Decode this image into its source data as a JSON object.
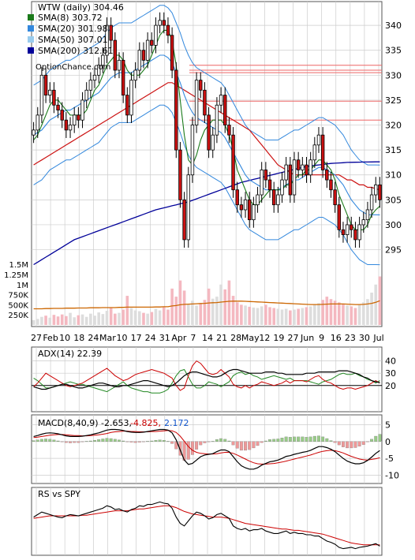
{
  "chart_data": {
    "type": "line",
    "symbol_header": "WTW (daily) 304.46",
    "source_label": "OptionChance.com",
    "colors": {
      "sma8": "#1a7a1a",
      "sma20": "#3388dd",
      "sma50": "#99ccee",
      "sma200": "#000099",
      "bollinger": "#3388dd",
      "envelope_yellow": "#eeee33",
      "candle_up": "#ffffff",
      "candle_down": "#cc1111",
      "resistance": "#ee6666",
      "adx": "#000000",
      "plus_di": "#cc0000",
      "minus_di": "#228822",
      "macd": "#000000",
      "macd_signal": "#cc0000",
      "macd_hist_up": "#99cc88",
      "macd_hist_down": "#ee9999",
      "volume_avg": "#cc6600",
      "rs": "#000000"
    },
    "legend": [
      {
        "label": "SMA(8) 303.72",
        "color": "#1a7a1a"
      },
      {
        "label": "SMA(20) 301.98",
        "color": "#3388dd"
      },
      {
        "label": "SMA(50) 307.01",
        "color": "#99ccee"
      },
      {
        "label": "SMA(200) 312.61",
        "color": "#000099"
      }
    ],
    "x_axis_labels": [
      "27",
      "Feb",
      "10",
      "18",
      "24",
      "Mar",
      "10",
      "17",
      "24",
      "31",
      "Apr",
      "7",
      "14",
      "21",
      "28",
      "May",
      "12",
      "19",
      "27",
      "Jun",
      "9",
      "16",
      "23",
      "30",
      "Jul"
    ],
    "price_ticks": [
      295,
      300,
      305,
      310,
      315,
      320,
      325,
      330,
      335,
      340
    ],
    "price_ylim": [
      290.5,
      343.5
    ],
    "volume_ticks": [
      "1.5M",
      "1.25M",
      "1M",
      "750K",
      "500K",
      "250K"
    ],
    "volume_tick_values": [
      1500000,
      1250000,
      1000000,
      750000,
      500000,
      250000
    ],
    "resistance_levels": [
      332,
      331,
      330.5,
      324.8,
      321
    ],
    "price_series": {
      "close": [
        319,
        322,
        330,
        326,
        327,
        324,
        323,
        321,
        319,
        320,
        322,
        321,
        325,
        327,
        329,
        330,
        332,
        334,
        340,
        337,
        331,
        333,
        326,
        322,
        329,
        331,
        335,
        333,
        337,
        336,
        340,
        341,
        340,
        338,
        331,
        315,
        305,
        297,
        310,
        320,
        329,
        327,
        322,
        315,
        318,
        324,
        326,
        320,
        318,
        307,
        304,
        303,
        305,
        301,
        304,
        306,
        311,
        309,
        307,
        304,
        306,
        309,
        312,
        306,
        313,
        311,
        312,
        310,
        313,
        316,
        318,
        311,
        309,
        307,
        304,
        299,
        298,
        300,
        299,
        297,
        300,
        301,
        303,
        306,
        308,
        305
      ],
      "sma8": [
        317,
        318,
        320,
        322,
        324,
        325,
        325,
        324,
        323,
        322,
        322,
        322,
        322,
        323,
        325,
        327,
        328,
        330,
        332,
        333,
        334,
        334,
        333,
        331,
        330,
        330,
        330,
        331,
        332,
        334,
        336,
        338,
        339,
        339,
        337,
        332,
        325,
        318,
        313,
        312,
        314,
        317,
        319,
        320,
        321,
        321,
        321,
        320,
        318,
        315,
        311,
        309,
        307,
        305,
        304,
        304,
        305,
        306,
        307,
        307,
        307,
        307,
        308,
        308,
        309,
        310,
        310,
        311,
        311,
        312,
        313,
        313,
        312,
        311,
        309,
        306,
        304,
        302,
        300,
        299,
        299,
        299,
        300,
        302,
        303,
        303.72
      ],
      "sma20": [
        318,
        318.5,
        319,
        320,
        321,
        321.5,
        322,
        322.5,
        323,
        323,
        323.5,
        324,
        324.5,
        325,
        325.5,
        326,
        326.5,
        327.5,
        328.5,
        329.5,
        330,
        330.5,
        330.5,
        330.5,
        330.5,
        331,
        331.5,
        332,
        332.5,
        333,
        333.5,
        334,
        334,
        333.5,
        332.5,
        330.5,
        328.5,
        326,
        324,
        322.5,
        321.5,
        321,
        320.5,
        320,
        319.5,
        319,
        318.5,
        317.5,
        316,
        314.5,
        313,
        311.5,
        310,
        309,
        308.5,
        308,
        307.5,
        307,
        307,
        307,
        307,
        307.5,
        308,
        308.5,
        309,
        309,
        309.5,
        310,
        310.5,
        311,
        311.5,
        311.5,
        311,
        310.5,
        310,
        309,
        308,
        306.5,
        305,
        304,
        303,
        302.5,
        302,
        302,
        302,
        301.98
      ],
      "sma50": [
        312,
        312.5,
        313,
        313.5,
        314,
        314.5,
        315,
        315.5,
        316,
        316.5,
        317,
        317.5,
        318,
        318.5,
        319,
        319.5,
        320,
        320.5,
        321,
        321.5,
        322,
        322.5,
        323,
        323.5,
        324,
        324.5,
        325,
        325.5,
        326,
        326.5,
        327,
        327.5,
        328,
        328.5,
        328.5,
        328,
        327.5,
        327,
        326.5,
        326,
        325.5,
        325,
        324.5,
        324,
        323.5,
        323,
        322.5,
        322,
        321.5,
        321,
        320.5,
        320,
        319.5,
        319,
        318,
        317,
        316,
        315,
        314,
        313,
        312,
        311.5,
        311,
        310.5,
        310,
        310,
        310,
        310,
        310,
        310,
        310,
        310,
        310,
        310,
        310,
        310,
        309.5,
        309,
        309,
        308.5,
        308,
        308,
        307.5,
        307.5,
        307.2,
        307.01
      ],
      "sma200": [
        292,
        292.5,
        293,
        293.5,
        294,
        294.5,
        295,
        295.5,
        296,
        296.5,
        297,
        297.3,
        297.6,
        297.9,
        298.2,
        298.5,
        298.8,
        299.1,
        299.4,
        299.7,
        300,
        300.3,
        300.6,
        300.9,
        301.2,
        301.5,
        301.8,
        302.1,
        302.4,
        302.7,
        303,
        303.2,
        303.4,
        303.6,
        303.8,
        304,
        304.2,
        304.4,
        304.6,
        304.9,
        305.2,
        305.5,
        305.8,
        306.1,
        306.4,
        306.7,
        307,
        307.3,
        307.6,
        307.9,
        308.2,
        308.5,
        308.7,
        308.9,
        309.1,
        309.3,
        309.5,
        309.7,
        309.9,
        310.1,
        310.3,
        310.5,
        310.7,
        310.9,
        311.1,
        311.3,
        311.5,
        311.7,
        311.8,
        311.9,
        312,
        312.1,
        312.2,
        312.3,
        312.35,
        312.4,
        312.45,
        312.5,
        312.52,
        312.54,
        312.56,
        312.58,
        312.59,
        312.6,
        312.61,
        312.61
      ]
    },
    "volume": [
      120000,
      150000,
      200000,
      230000,
      180000,
      250000,
      210000,
      260000,
      220000,
      300000,
      190000,
      240000,
      260000,
      200000,
      280000,
      230000,
      310000,
      270000,
      350000,
      420000,
      280000,
      300000,
      380000,
      720000,
      420000,
      360000,
      340000,
      300000,
      280000,
      320000,
      400000,
      360000,
      450000,
      380000,
      900000,
      700000,
      1100000,
      850000,
      520000,
      600000,
      480000,
      540000,
      620000,
      900000,
      650000,
      700000,
      1000000,
      880000,
      1100000,
      720000,
      560000,
      500000,
      480000,
      450000,
      430000,
      420000,
      460000,
      500000,
      440000,
      420000,
      400000,
      380000,
      400000,
      360000,
      380000,
      400000,
      420000,
      440000,
      460000,
      500000,
      540000,
      620000,
      700000,
      640000,
      600000,
      560000,
      520000,
      480000,
      460000,
      420000,
      500000,
      560000,
      640000,
      800000,
      1000000,
      1200000
    ],
    "volume_avg": [
      400000,
      400000,
      400000,
      405000,
      405000,
      410000,
      410000,
      410000,
      415000,
      415000,
      415000,
      420000,
      420000,
      420000,
      425000,
      425000,
      425000,
      430000,
      430000,
      430000,
      430000,
      435000,
      435000,
      440000,
      440000,
      440000,
      440000,
      440000,
      440000,
      440000,
      445000,
      445000,
      450000,
      450000,
      470000,
      480000,
      500000,
      510000,
      515000,
      520000,
      525000,
      530000,
      535000,
      545000,
      550000,
      555000,
      565000,
      575000,
      585000,
      590000,
      590000,
      590000,
      585000,
      580000,
      575000,
      570000,
      565000,
      560000,
      555000,
      550000,
      545000,
      540000,
      535000,
      530000,
      525000,
      520000,
      515000,
      510000,
      505000,
      505000,
      505000,
      510000,
      515000,
      520000,
      520000,
      520000,
      520000,
      515000,
      510000,
      505000,
      505000,
      510000,
      520000,
      535000,
      560000,
      600000
    ],
    "adx": {
      "label": "ADX(14) 22.39",
      "ticks": [
        40,
        30,
        20
      ],
      "ylim": [
        0,
        50
      ],
      "adx": [
        19,
        18,
        17,
        17,
        18,
        19,
        20,
        21,
        21,
        20,
        19,
        18,
        18,
        19,
        20,
        21,
        22,
        22,
        21,
        20,
        19,
        19,
        20,
        20,
        21,
        22,
        23,
        24,
        24,
        23,
        22,
        21,
        20,
        19,
        20,
        22,
        25,
        28,
        30,
        31,
        31,
        30,
        29,
        28,
        27,
        27,
        28,
        30,
        32,
        33,
        33,
        32,
        31,
        30,
        30,
        30,
        30,
        31,
        31,
        31,
        30,
        30,
        29,
        29,
        29,
        29,
        29,
        30,
        30,
        30,
        31,
        31,
        31,
        31,
        31,
        32,
        32,
        32,
        31,
        30,
        29,
        27,
        26,
        24,
        23,
        22.39
      ],
      "plus_di": [
        19,
        22,
        26,
        30,
        28,
        26,
        24,
        22,
        20,
        19,
        20,
        21,
        22,
        24,
        26,
        28,
        30,
        32,
        34,
        31,
        28,
        26,
        24,
        25,
        27,
        29,
        30,
        31,
        32,
        33,
        32,
        31,
        30,
        28,
        26,
        20,
        16,
        18,
        28,
        36,
        40,
        38,
        34,
        30,
        29,
        30,
        33,
        30,
        27,
        21,
        19,
        18,
        20,
        18,
        20,
        21,
        23,
        22,
        21,
        20,
        21,
        22,
        24,
        22,
        24,
        24,
        24,
        23,
        25,
        27,
        28,
        25,
        23,
        22,
        20,
        18,
        17,
        18,
        18,
        17,
        18,
        19,
        20,
        22,
        24,
        22
      ],
      "minus_di": [
        26,
        24,
        21,
        18,
        18,
        19,
        20,
        21,
        22,
        23,
        22,
        21,
        21,
        20,
        19,
        18,
        17,
        16,
        15,
        17,
        19,
        21,
        23,
        20,
        18,
        17,
        16,
        15,
        15,
        14,
        14,
        14,
        15,
        17,
        22,
        28,
        32,
        33,
        27,
        21,
        18,
        18,
        20,
        23,
        22,
        21,
        19,
        21,
        23,
        28,
        30,
        31,
        29,
        30,
        28,
        27,
        25,
        26,
        27,
        28,
        27,
        26,
        25,
        26,
        24,
        24,
        24,
        24,
        23,
        22,
        21,
        23,
        24,
        25,
        27,
        29,
        30,
        29,
        29,
        30,
        28,
        27,
        25,
        24,
        22,
        24
      ]
    },
    "macd": {
      "label": "MACD(8,40,9) -2.653,",
      "signal_label": "-4.825,",
      "hist_label": "2.172",
      "ticks": [
        5,
        0,
        -5,
        -10
      ],
      "ylim": [
        -12,
        7
      ],
      "macd": [
        1.5,
        1.8,
        2.2,
        2.5,
        2.6,
        2.5,
        2.3,
        2.0,
        1.7,
        1.5,
        1.5,
        1.5,
        1.6,
        1.8,
        2.0,
        2.3,
        2.6,
        3.0,
        3.4,
        3.6,
        3.6,
        3.5,
        3.3,
        3.0,
        2.8,
        2.7,
        2.7,
        2.8,
        3.0,
        3.2,
        3.4,
        3.6,
        3.6,
        3.4,
        2.6,
        0.5,
        -2.5,
        -5.5,
        -6.8,
        -6.5,
        -5.5,
        -4.5,
        -4.0,
        -3.8,
        -3.6,
        -3.0,
        -2.5,
        -2.5,
        -3.0,
        -4.5,
        -6.0,
        -7.2,
        -7.8,
        -8.2,
        -8.2,
        -7.8,
        -7.0,
        -6.5,
        -6.0,
        -5.8,
        -5.5,
        -5.0,
        -4.4,
        -4.2,
        -3.8,
        -3.5,
        -3.2,
        -3.0,
        -2.6,
        -2.0,
        -1.5,
        -1.5,
        -1.8,
        -2.3,
        -3.0,
        -4.0,
        -5.0,
        -5.8,
        -6.3,
        -6.6,
        -6.6,
        -6.3,
        -5.6,
        -4.6,
        -3.5,
        -2.653
      ],
      "signal": [
        1.2,
        1.3,
        1.5,
        1.7,
        1.9,
        2.0,
        2.1,
        2.1,
        2.0,
        1.9,
        1.8,
        1.8,
        1.7,
        1.7,
        1.8,
        1.9,
        2.0,
        2.2,
        2.4,
        2.7,
        2.9,
        3.0,
        3.1,
        3.1,
        3.0,
        3.0,
        2.9,
        2.9,
        2.9,
        3.0,
        3.0,
        3.1,
        3.2,
        3.3,
        3.2,
        2.7,
        1.6,
        0.1,
        -1.5,
        -2.6,
        -3.2,
        -3.5,
        -3.6,
        -3.7,
        -3.7,
        -3.6,
        -3.4,
        -3.2,
        -3.2,
        -3.5,
        -4.0,
        -4.6,
        -5.2,
        -5.8,
        -6.3,
        -6.6,
        -6.7,
        -6.7,
        -6.6,
        -6.5,
        -6.3,
        -6.1,
        -5.8,
        -5.5,
        -5.2,
        -4.9,
        -4.6,
        -4.3,
        -4.0,
        -3.6,
        -3.2,
        -2.9,
        -2.7,
        -2.6,
        -2.7,
        -3.0,
        -3.4,
        -3.9,
        -4.4,
        -4.8,
        -5.2,
        -5.4,
        -5.5,
        -5.3,
        -5.1,
        -4.825
      ]
    },
    "rs": {
      "label": "RS vs SPY",
      "ylim": [
        0,
        100
      ],
      "rs": [
        58,
        62,
        66,
        64,
        62,
        60,
        58,
        57,
        60,
        62,
        61,
        60,
        62,
        64,
        66,
        68,
        70,
        72,
        76,
        74,
        70,
        71,
        68,
        66,
        70,
        72,
        76,
        75,
        78,
        78,
        80,
        82,
        80,
        79,
        72,
        58,
        48,
        44,
        52,
        60,
        66,
        64,
        60,
        55,
        57,
        62,
        64,
        60,
        56,
        44,
        40,
        38,
        40,
        36,
        38,
        38,
        40,
        36,
        34,
        32,
        32,
        34,
        36,
        32,
        34,
        32,
        32,
        30,
        30,
        28,
        28,
        24,
        20,
        18,
        15,
        10,
        8,
        9,
        10,
        8,
        10,
        11,
        12,
        14,
        16,
        12
      ],
      "rs_avg": [
        56,
        57,
        58,
        59,
        60,
        60,
        60,
        60,
        60,
        60,
        60,
        60,
        61,
        61,
        62,
        63,
        64,
        65,
        66,
        67,
        68,
        68,
        68,
        68,
        69,
        70,
        71,
        71,
        72,
        73,
        74,
        75,
        76,
        76,
        75,
        73,
        70,
        67,
        65,
        63,
        62,
        61,
        60,
        59,
        58,
        58,
        58,
        57,
        56,
        54,
        52,
        50,
        48,
        47,
        46,
        45,
        44,
        43,
        42,
        41,
        40,
        39,
        39,
        38,
        37,
        37,
        36,
        35,
        34,
        33,
        32,
        31,
        29,
        27,
        25,
        23,
        21,
        19,
        17,
        16,
        15,
        14,
        14,
        14,
        14,
        14
      ]
    }
  }
}
